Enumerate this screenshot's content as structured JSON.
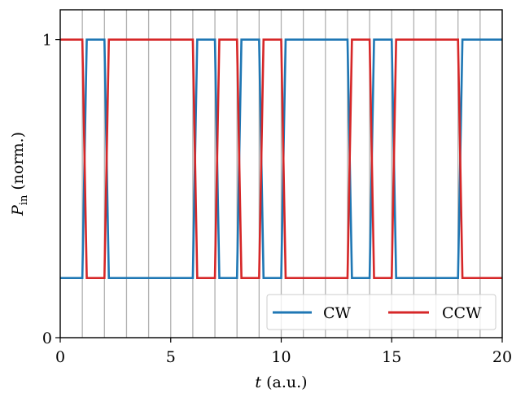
{
  "chart_data": {
    "type": "line",
    "title": "",
    "xlabel": {
      "symbol": "t",
      "unit": " (a.u.)"
    },
    "ylabel": {
      "symbol": "P",
      "subscript": "in",
      "unit": " (norm.)"
    },
    "xlim": [
      0,
      20
    ],
    "ylim": [
      0,
      1.1
    ],
    "xticks": [
      0,
      5,
      10,
      15,
      20
    ],
    "yticks": [
      0,
      1
    ],
    "vertical_gridlines_at": [
      1,
      2,
      3,
      4,
      5,
      6,
      7,
      8,
      9,
      10,
      11,
      12,
      13,
      14,
      15,
      16,
      17,
      18,
      19
    ],
    "grid": "vertical",
    "legend_position": "lower-right",
    "legend_columns": 2,
    "series": [
      {
        "name": "CW",
        "color": "#1f77b4",
        "x": [
          0,
          1,
          1.2,
          2,
          2.2,
          6,
          6.2,
          7,
          7.2,
          8,
          8.2,
          9,
          9.2,
          10,
          10.2,
          13,
          13.2,
          14,
          14.2,
          15,
          15.2,
          18,
          18.2,
          20
        ],
        "y": [
          0.2,
          0.2,
          1,
          1,
          0.2,
          0.2,
          1,
          1,
          0.2,
          0.2,
          1,
          1,
          0.2,
          0.2,
          1,
          1,
          0.2,
          0.2,
          1,
          1,
          0.2,
          0.2,
          1,
          1
        ]
      },
      {
        "name": "CCW",
        "color": "#d62728",
        "x": [
          0,
          1,
          1.2,
          2,
          2.2,
          6,
          6.2,
          7,
          7.2,
          8,
          8.2,
          9,
          9.2,
          10,
          10.2,
          13,
          13.2,
          14,
          14.2,
          15,
          15.2,
          18,
          18.2,
          20
        ],
        "y": [
          1,
          1,
          0.2,
          0.2,
          1,
          1,
          0.2,
          0.2,
          1,
          1,
          0.2,
          0.2,
          1,
          1,
          0.2,
          0.2,
          1,
          1,
          0.2,
          0.2,
          1,
          1,
          0.2,
          0.2
        ]
      }
    ]
  }
}
